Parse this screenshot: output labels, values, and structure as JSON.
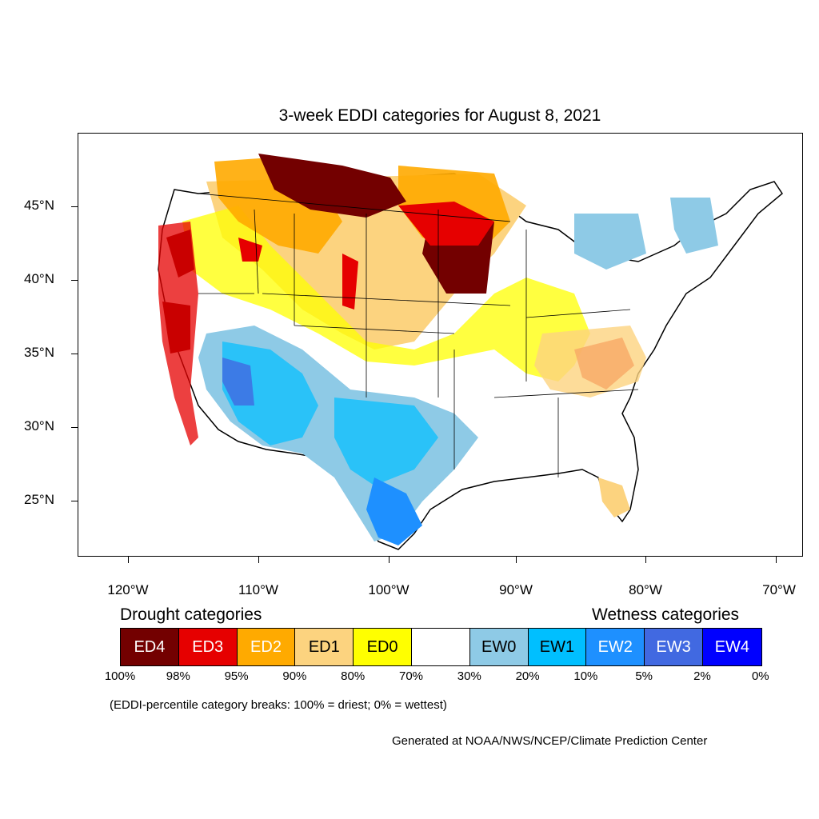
{
  "title": "3-week EDDI categories for August 8, 2021",
  "lat_labels": [
    "45°N",
    "40°N",
    "35°N",
    "30°N",
    "25°N"
  ],
  "lon_labels": [
    "120°W",
    "110°W",
    "100°W",
    "90°W",
    "80°W",
    "70°W"
  ],
  "legend": {
    "drought_heading": "Drought categories",
    "wetness_heading": "Wetness categories",
    "categories": [
      {
        "label": "ED4",
        "color": "#730000",
        "text_color": "#ffffff"
      },
      {
        "label": "ED3",
        "color": "#e60000",
        "text_color": "#ffffff"
      },
      {
        "label": "ED2",
        "color": "#ffaa00",
        "text_color": "#ffffff"
      },
      {
        "label": "ED1",
        "color": "#fcd37f",
        "text_color": "#000000"
      },
      {
        "label": "ED0",
        "color": "#ffff00",
        "text_color": "#000000"
      },
      {
        "label": "",
        "color": "#ffffff",
        "text_color": "#000000"
      },
      {
        "label": "EW0",
        "color": "#8ecae6",
        "text_color": "#000000"
      },
      {
        "label": "EW1",
        "color": "#00bfff",
        "text_color": "#000000"
      },
      {
        "label": "EW2",
        "color": "#1e90ff",
        "text_color": "#ffffff"
      },
      {
        "label": "EW3",
        "color": "#4169e1",
        "text_color": "#ffffff"
      },
      {
        "label": "EW4",
        "color": "#0000ff",
        "text_color": "#ffffff"
      }
    ],
    "breaks": [
      "100%",
      "98%",
      "95%",
      "90%",
      "80%",
      "70%",
      "30%",
      "20%",
      "10%",
      "5%",
      "2%",
      "0%"
    ]
  },
  "note": "(EDDI-percentile category breaks: 100% = driest; 0% = wettest)",
  "credit": "Generated at NOAA/NWS/NCEP/Climate Prediction Center"
}
